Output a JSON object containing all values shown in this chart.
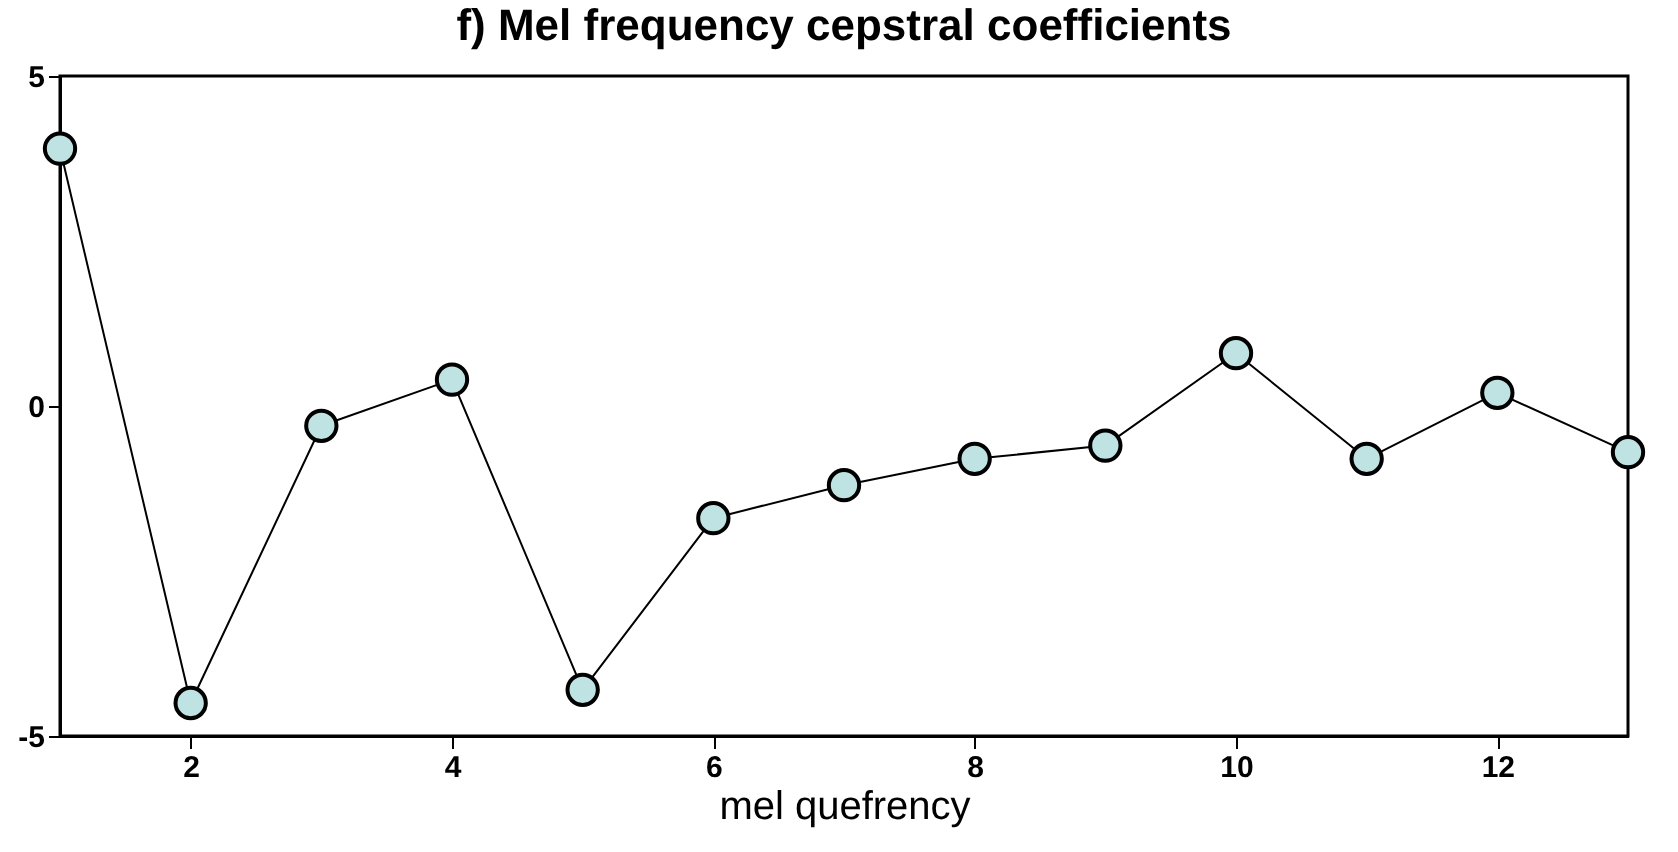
{
  "chart_data": {
    "type": "line",
    "title": "f) Mel frequency cepstral coefficients",
    "xlabel": "mel quefrency",
    "x": [
      1,
      2,
      3,
      4,
      5,
      6,
      7,
      8,
      9,
      10,
      11,
      12,
      13
    ],
    "series": [
      {
        "color": "#000000",
        "values": [
          3.9,
          -4.5,
          -0.3,
          0.4,
          -4.3,
          -1.7,
          -1.2,
          -0.8,
          -0.6,
          0.8,
          -0.8,
          0.2,
          -0.7
        ]
      }
    ],
    "xlim": [
      1,
      13
    ],
    "xticks": [
      2,
      4,
      6,
      8,
      10,
      12
    ],
    "ylim": [
      -5,
      5
    ],
    "yticks": [
      -5,
      0,
      5
    ],
    "marker": "circle",
    "line_style": "solid",
    "grid": false,
    "legend": false
  }
}
